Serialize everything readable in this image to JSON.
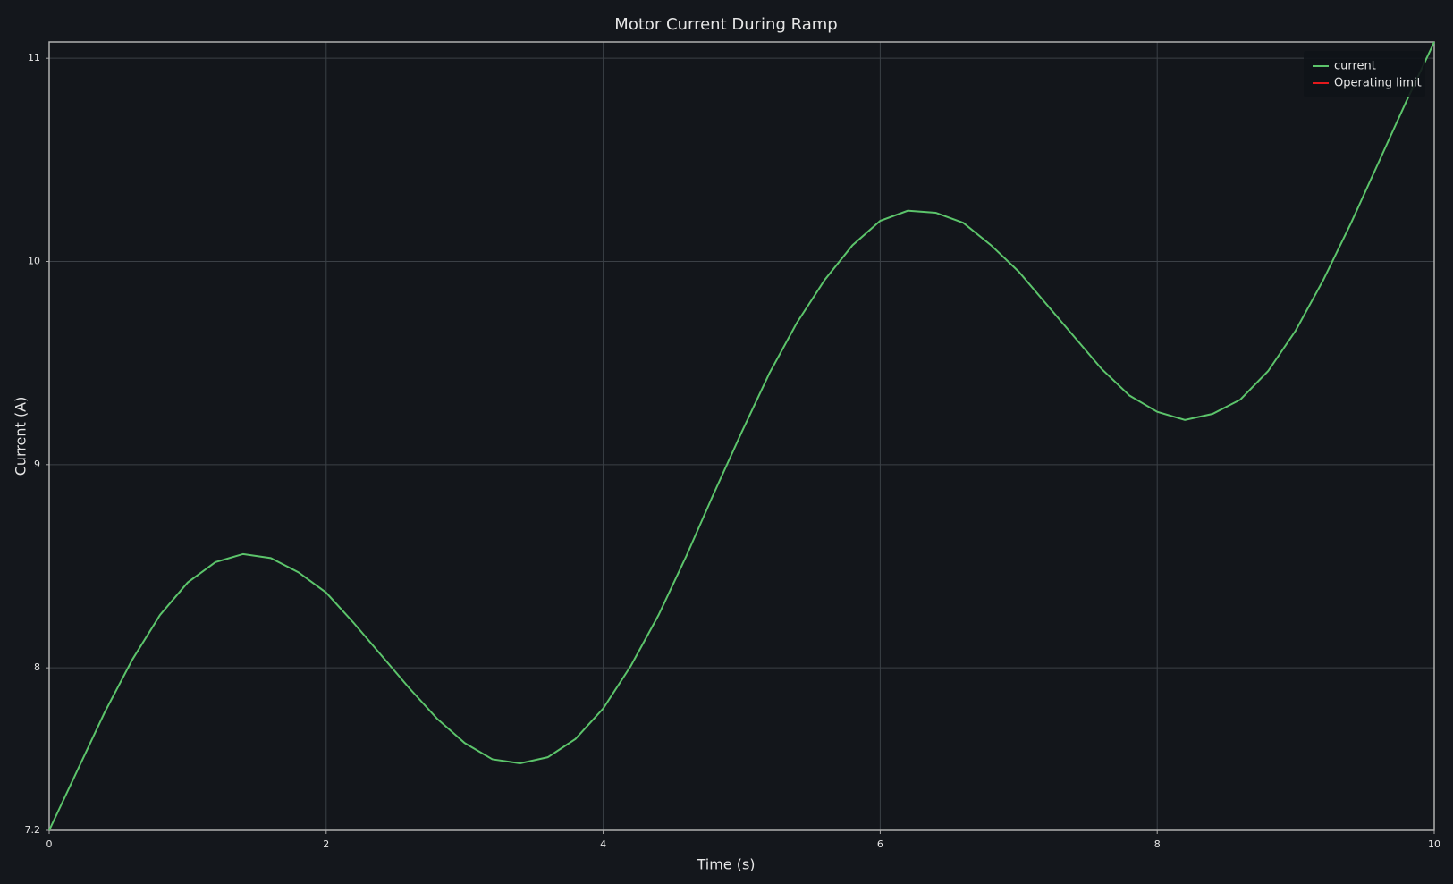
{
  "chart_data": {
    "type": "line",
    "title": "Motor Current During Ramp",
    "x_label": "Time (s)",
    "y_label": "Current (A)",
    "x": [
      0,
      0.2,
      0.4,
      0.6,
      0.8,
      1.0,
      1.2,
      1.4,
      1.6,
      1.8,
      2.0,
      2.2,
      2.4,
      2.6,
      2.8,
      3.0,
      3.2,
      3.4,
      3.6,
      3.8,
      4.0,
      4.2,
      4.4,
      4.6,
      4.8,
      5.0,
      5.2,
      5.4,
      5.6,
      5.8,
      6.0,
      6.2,
      6.4,
      6.6,
      6.8,
      7.0,
      7.2,
      7.4,
      7.6,
      7.8,
      8.0,
      8.2,
      8.4,
      8.6,
      8.8,
      9.0,
      9.2,
      9.4,
      9.6,
      9.8,
      10.0
    ],
    "series": [
      {
        "name": "current",
        "color": "#5cc46b",
        "values": [
          7.2,
          7.49,
          7.78,
          8.04,
          8.26,
          8.42,
          8.52,
          8.56,
          8.54,
          8.47,
          8.37,
          8.22,
          8.06,
          7.9,
          7.75,
          7.63,
          7.55,
          7.53,
          7.56,
          7.65,
          7.8,
          8.01,
          8.26,
          8.55,
          8.86,
          9.16,
          9.45,
          9.7,
          9.91,
          10.08,
          10.2,
          10.25,
          10.24,
          10.19,
          10.08,
          9.95,
          9.79,
          9.63,
          9.47,
          9.34,
          9.26,
          9.22,
          9.25,
          9.32,
          9.46,
          9.66,
          9.91,
          10.19,
          10.49,
          10.79,
          11.08
        ]
      },
      {
        "name": "Operating limit",
        "color": "#e3191c",
        "values": [
          null,
          null,
          null,
          null,
          null,
          null,
          null,
          null,
          null,
          null,
          null,
          null,
          null,
          null,
          null,
          null,
          null,
          null,
          null,
          null,
          null,
          null,
          null,
          null,
          null,
          null,
          null,
          null,
          null,
          null,
          null,
          null,
          null,
          null,
          null,
          null,
          null,
          null,
          null,
          null,
          null,
          null,
          null,
          null,
          null,
          null,
          null,
          null,
          null,
          null,
          null
        ]
      }
    ],
    "xlim": [
      0,
      10
    ],
    "xticks": [
      0,
      2,
      4,
      6,
      8,
      10
    ],
    "ylim": [
      7.2,
      11.08
    ],
    "yticks": [
      7.2,
      8,
      9,
      10,
      11
    ],
    "grid": true,
    "legend": "upper right"
  }
}
